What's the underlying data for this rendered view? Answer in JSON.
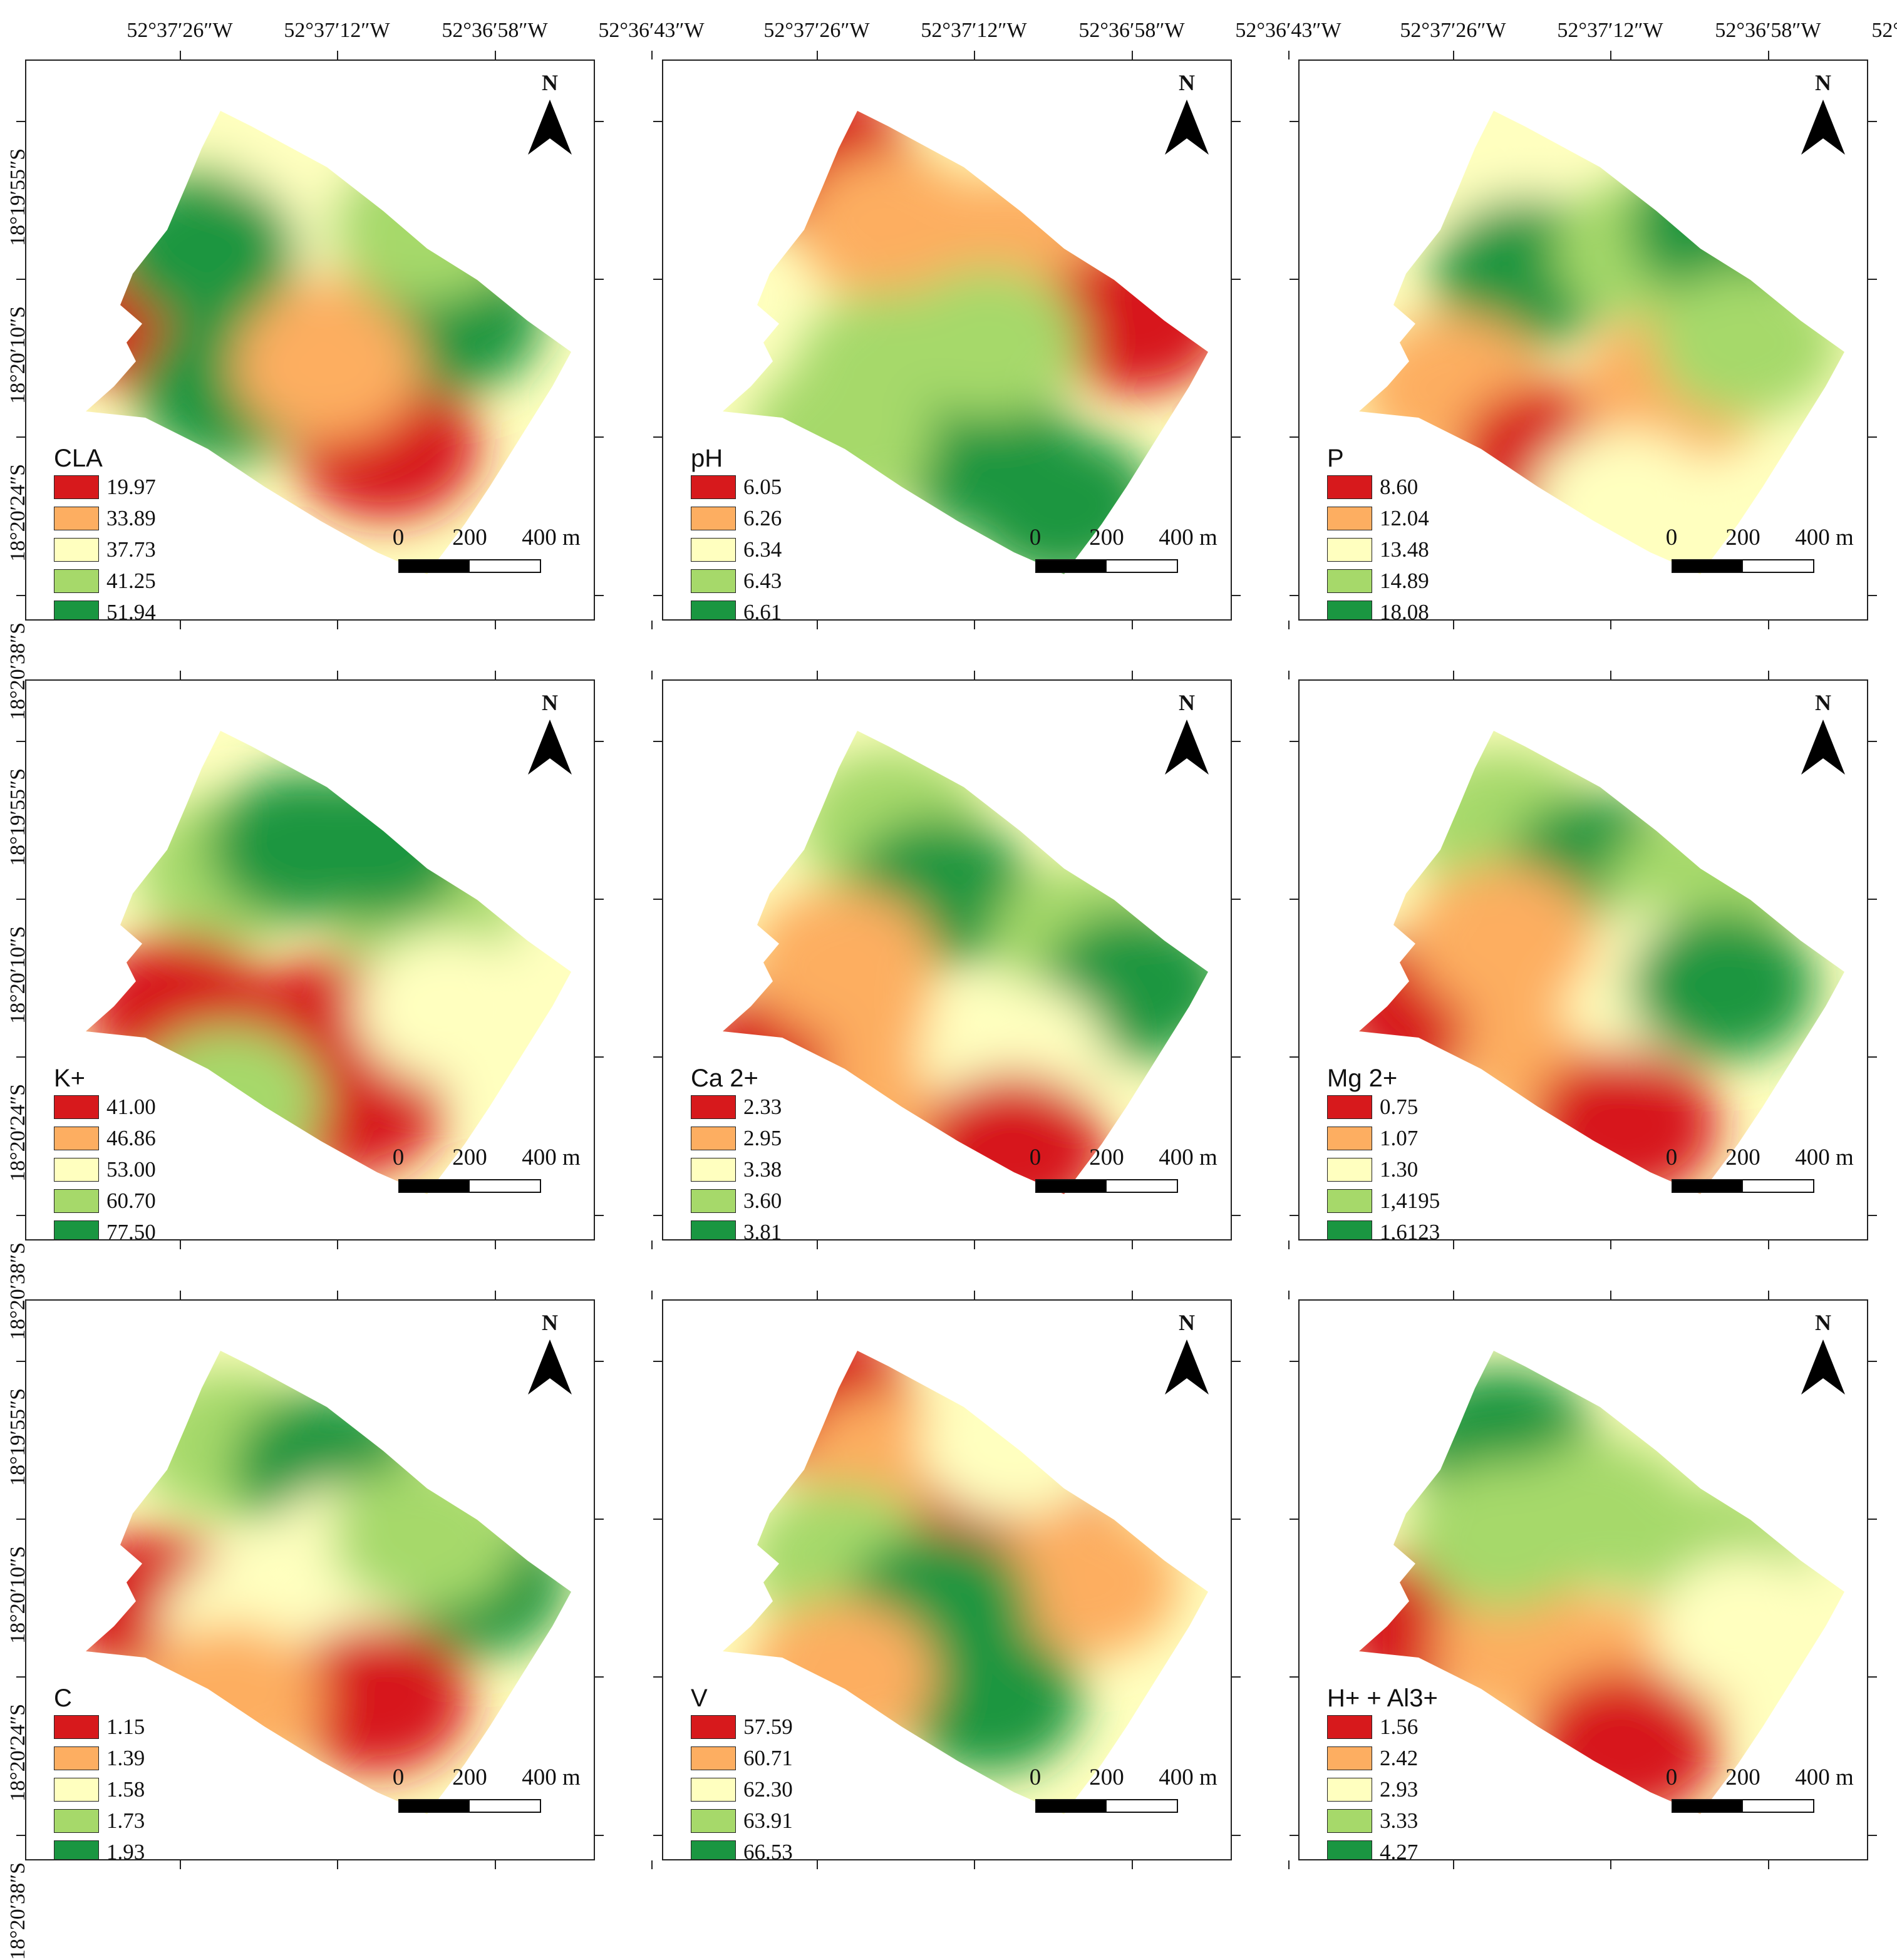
{
  "figure": {
    "top_axis_labels": [
      "52°37′26″W",
      "52°37′12″W",
      "52°36′58″W",
      "52°36′43″W"
    ],
    "left_axis_labels": [
      "18°19′55″S",
      "18°20′10″S",
      "18°20′24″S",
      "18°20′38″S"
    ]
  },
  "legend_colors": [
    "#d7191c",
    "#fdae61",
    "#ffffbf",
    "#a6d96a",
    "#1a9641"
  ],
  "scale_bar": {
    "labels": [
      "0",
      "200",
      "400 m"
    ]
  },
  "north_arrow": {
    "label": "N"
  },
  "panels": [
    {
      "title": "CLA",
      "classes": [
        "19.97",
        "33.89",
        "37.73",
        "41.25",
        "51.94"
      ]
    },
    {
      "title": "pH",
      "classes": [
        "6.05",
        "6.26",
        "6.34",
        "6.43",
        "6.61"
      ]
    },
    {
      "title": "P",
      "classes": [
        "8.60",
        "12.04",
        "13.48",
        "14.89",
        "18.08"
      ]
    },
    {
      "title": "K+",
      "classes": [
        "41.00",
        "46.86",
        "53.00",
        "60.70",
        "77.50"
      ]
    },
    {
      "title": "Ca 2+",
      "classes": [
        "2.33",
        "2.95",
        "3.38",
        "3.60",
        "3.81"
      ]
    },
    {
      "title": "Mg 2+",
      "classes": [
        "0.75",
        "1.07",
        "1.30",
        "1,4195",
        "1,6123"
      ]
    },
    {
      "title": "C",
      "classes": [
        "1.15",
        "1.39",
        "1.58",
        "1.73",
        "1.93"
      ]
    },
    {
      "title": "V",
      "classes": [
        "57.59",
        "60.71",
        "62.30",
        "63.91",
        "66.53"
      ]
    },
    {
      "title": "H+ + Al3+",
      "classes": [
        "1.56",
        "2.42",
        "2.93",
        "3.33",
        "4.27"
      ]
    }
  ]
}
